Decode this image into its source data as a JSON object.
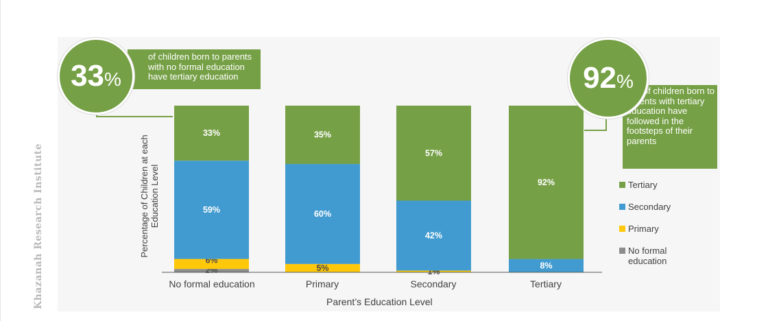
{
  "watermark": "Khazanah Research Institute",
  "colors": {
    "tertiary": "#76a046",
    "secondary": "#429bd0",
    "primary": "#ffc80a",
    "no_formal": "#8c8c8c"
  },
  "callouts": {
    "left": {
      "value": "33",
      "unit": "%",
      "text": "of children born to parents with no formal education have tertiary education"
    },
    "right": {
      "value": "92",
      "unit": "%",
      "text_first": "of children born to",
      "text_rest": "parents with tertiary education have followed in the footsteps of their parents"
    }
  },
  "chart_data": {
    "type": "bar",
    "stacked": true,
    "categories": [
      "No formal education",
      "Primary",
      "Secondary",
      "Tertiary"
    ],
    "xlabel": "Parent’s Education Level",
    "ylabel": "Percentage of Children at each Education Level",
    "ylim": [
      0,
      100
    ],
    "grid": false,
    "legend_position": "right",
    "series": [
      {
        "name": "No formal education",
        "key": "no_formal",
        "values": [
          2,
          0,
          0,
          0
        ],
        "labels": [
          "2%",
          "",
          "",
          ""
        ]
      },
      {
        "name": "Primary",
        "key": "primary",
        "values": [
          6,
          5,
          1,
          0
        ],
        "labels": [
          "6%",
          "5%",
          "1%",
          ""
        ]
      },
      {
        "name": "Secondary",
        "key": "secondary",
        "values": [
          59,
          60,
          42,
          8
        ],
        "labels": [
          "59%",
          "60%",
          "42%",
          "8%"
        ]
      },
      {
        "name": "Tertiary",
        "key": "tertiary",
        "values": [
          33,
          35,
          57,
          92
        ],
        "labels": [
          "33%",
          "35%",
          "57%",
          "92%"
        ]
      }
    ],
    "legend": [
      "Tertiary",
      "Secondary",
      "Primary",
      "No formal education"
    ]
  }
}
